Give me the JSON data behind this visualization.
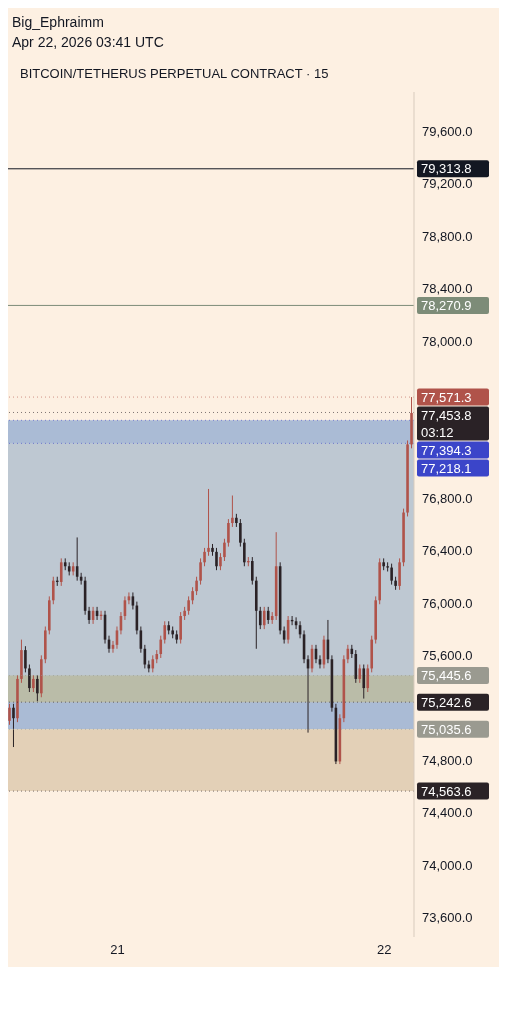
{
  "chart_data": {
    "type": "candlestick",
    "title": "BITCOIN/TETHERUS PERPETUAL CONTRACT · 15",
    "annotations": [
      "Big_Ephraimm",
      "Apr 22, 2026 03:41 UTC"
    ],
    "categories": [
      null,
      null,
      null,
      null,
      null,
      null,
      null,
      null,
      null,
      null,
      null,
      null,
      null,
      null,
      null,
      null,
      null,
      null,
      null,
      null,
      null,
      null,
      null,
      null,
      null,
      null,
      null,
      "21",
      null,
      null,
      null,
      null,
      null,
      null,
      null,
      null,
      null,
      null,
      null,
      null,
      null,
      null,
      null,
      null,
      null,
      null,
      null,
      null,
      null,
      null,
      null,
      null,
      null,
      null,
      null,
      null,
      null,
      null,
      null,
      null,
      null,
      null,
      null,
      null,
      null,
      null,
      null,
      null,
      null,
      null,
      null,
      null,
      null,
      null,
      null,
      null,
      null,
      null,
      null,
      null,
      null,
      null,
      null,
      null,
      null,
      null,
      null,
      null,
      null,
      null,
      null,
      null,
      null,
      null,
      "22",
      null,
      null,
      null,
      null,
      null,
      null,
      null
    ],
    "ohlc": [
      [
        75100,
        75230,
        75070,
        75200
      ],
      [
        75200,
        75230,
        74900,
        75120
      ],
      [
        75120,
        75450,
        75090,
        75420
      ],
      [
        75420,
        75720,
        75390,
        75640
      ],
      [
        75640,
        75670,
        75470,
        75500
      ],
      [
        75500,
        75530,
        75320,
        75350
      ],
      [
        75350,
        75450,
        75320,
        75420
      ],
      [
        75420,
        75450,
        75250,
        75310
      ],
      [
        75310,
        75600,
        75280,
        75570
      ],
      [
        75570,
        75820,
        75540,
        75790
      ],
      [
        75790,
        76050,
        75760,
        76020
      ],
      [
        76020,
        76200,
        75990,
        76170
      ],
      [
        76170,
        76200,
        76130,
        76160
      ],
      [
        76160,
        76340,
        76130,
        76310
      ],
      [
        76310,
        76340,
        76250,
        76280
      ],
      [
        76280,
        76310,
        76210,
        76240
      ],
      [
        76240,
        76310,
        76210,
        76280
      ],
      [
        76280,
        76500,
        76170,
        76200
      ],
      [
        76200,
        76230,
        76140,
        76170
      ],
      [
        76170,
        76200,
        75910,
        75940
      ],
      [
        75940,
        75970,
        75840,
        75870
      ],
      [
        75870,
        75970,
        75840,
        75940
      ],
      [
        75940,
        75970,
        75870,
        75900
      ],
      [
        75900,
        75940,
        75870,
        75910
      ],
      [
        75910,
        75940,
        75690,
        75720
      ],
      [
        75720,
        75750,
        75620,
        75650
      ],
      [
        75650,
        75710,
        75620,
        75680
      ],
      [
        75680,
        75820,
        75650,
        75790
      ],
      [
        75790,
        75930,
        75760,
        75900
      ],
      [
        75900,
        76050,
        75870,
        76020
      ],
      [
        76020,
        76080,
        75990,
        76050
      ],
      [
        76050,
        76080,
        75950,
        75980
      ],
      [
        75980,
        76010,
        75760,
        75790
      ],
      [
        75790,
        75820,
        75620,
        75650
      ],
      [
        75650,
        75680,
        75500,
        75530
      ],
      [
        75530,
        75560,
        75470,
        75500
      ],
      [
        75500,
        75600,
        75470,
        75570
      ],
      [
        75570,
        75640,
        75540,
        75610
      ],
      [
        75610,
        75750,
        75580,
        75720
      ],
      [
        75720,
        75860,
        75690,
        75830
      ],
      [
        75830,
        75860,
        75760,
        75790
      ],
      [
        75790,
        75820,
        75730,
        75760
      ],
      [
        75760,
        75790,
        75690,
        75720
      ],
      [
        75720,
        75930,
        75690,
        75900
      ],
      [
        75900,
        75970,
        75870,
        75940
      ],
      [
        75940,
        76050,
        75910,
        76020
      ],
      [
        76020,
        76120,
        75990,
        76090
      ],
      [
        76090,
        76200,
        76060,
        76170
      ],
      [
        76170,
        76340,
        76140,
        76310
      ],
      [
        76310,
        76420,
        76280,
        76390
      ],
      [
        76390,
        76870,
        76360,
        76420
      ],
      [
        76420,
        76450,
        76360,
        76390
      ],
      [
        76390,
        76420,
        76250,
        76280
      ],
      [
        76280,
        76380,
        76250,
        76350
      ],
      [
        76350,
        76490,
        76320,
        76460
      ],
      [
        76460,
        76640,
        76430,
        76610
      ],
      [
        76610,
        76820,
        76580,
        76650
      ],
      [
        76650,
        76680,
        76580,
        76610
      ],
      [
        76610,
        76640,
        76430,
        76460
      ],
      [
        76460,
        76490,
        76280,
        76310
      ],
      [
        76310,
        76350,
        76280,
        76320
      ],
      [
        76320,
        76350,
        76140,
        76170
      ],
      [
        76170,
        76200,
        75650,
        75940
      ],
      [
        75940,
        75970,
        75800,
        75830
      ],
      [
        75830,
        75970,
        75800,
        75940
      ],
      [
        75940,
        75970,
        75840,
        75870
      ],
      [
        75870,
        75930,
        75840,
        75900
      ],
      [
        75900,
        76540,
        75870,
        76280
      ],
      [
        76280,
        76310,
        75760,
        75790
      ],
      [
        75790,
        75820,
        75690,
        75720
      ],
      [
        75720,
        75900,
        75690,
        75870
      ],
      [
        75870,
        75900,
        75830,
        75860
      ],
      [
        75860,
        75890,
        75800,
        75830
      ],
      [
        75830,
        75860,
        75730,
        75760
      ],
      [
        75760,
        75790,
        75540,
        75570
      ],
      [
        75570,
        75600,
        75010,
        75500
      ],
      [
        75500,
        75680,
        75470,
        75650
      ],
      [
        75650,
        75680,
        75540,
        75570
      ],
      [
        75570,
        75600,
        75500,
        75530
      ],
      [
        75530,
        75750,
        75500,
        75720
      ],
      [
        75720,
        75870,
        75540,
        75570
      ],
      [
        75570,
        75600,
        75170,
        75200
      ],
      [
        75200,
        75230,
        74770,
        74790
      ],
      [
        74790,
        75150,
        74770,
        75120
      ],
      [
        75120,
        75600,
        75090,
        75570
      ],
      [
        75570,
        75680,
        75540,
        75650
      ],
      [
        75650,
        75680,
        75580,
        75610
      ],
      [
        75610,
        75640,
        75390,
        75420
      ],
      [
        75420,
        75530,
        75390,
        75500
      ],
      [
        75500,
        75530,
        75270,
        75350
      ],
      [
        75350,
        75530,
        75320,
        75500
      ],
      [
        75500,
        75750,
        75470,
        75720
      ],
      [
        75720,
        76050,
        75690,
        76020
      ],
      [
        76020,
        76340,
        75990,
        76310
      ],
      [
        76310,
        76340,
        76250,
        76280
      ],
      [
        76280,
        76310,
        76240,
        76270
      ],
      [
        76270,
        76300,
        76140,
        76170
      ],
      [
        76170,
        76200,
        76100,
        76130
      ],
      [
        76130,
        76340,
        76100,
        76310
      ],
      [
        76310,
        76720,
        76280,
        76690
      ],
      [
        76690,
        77240,
        76660,
        77210
      ],
      [
        77210,
        77571.3,
        77180,
        77450
      ]
    ],
    "colors": [
      "#b0534a",
      "#2a2226",
      "#b0534a",
      "#b0534a",
      "#2a2226",
      "#2a2226",
      "#b0534a",
      "#2a2226",
      "#b0534a",
      "#b0534a",
      "#b0534a",
      "#b0534a",
      "#2a2226",
      "#b0534a",
      "#2a2226",
      "#2a2226",
      "#b0534a",
      "#2a2226",
      "#2a2226",
      "#2a2226",
      "#2a2226",
      "#b0534a",
      "#2a2226",
      "#b0534a",
      "#2a2226",
      "#2a2226",
      "#b0534a",
      "#b0534a",
      "#b0534a",
      "#b0534a",
      "#b0534a",
      "#2a2226",
      "#2a2226",
      "#2a2226",
      "#2a2226",
      "#2a2226",
      "#b0534a",
      "#b0534a",
      "#b0534a",
      "#b0534a",
      "#2a2226",
      "#2a2226",
      "#2a2226",
      "#b0534a",
      "#b0534a",
      "#b0534a",
      "#b0534a",
      "#b0534a",
      "#b0534a",
      "#b0534a",
      "#b0534a",
      "#2a2226",
      "#2a2226",
      "#b0534a",
      "#b0534a",
      "#b0534a",
      "#b0534a",
      "#2a2226",
      "#2a2226",
      "#2a2226",
      "#b0534a",
      "#2a2226",
      "#2a2226",
      "#2a2226",
      "#b0534a",
      "#2a2226",
      "#b0534a",
      "#b0534a",
      "#2a2226",
      "#2a2226",
      "#b0534a",
      "#2a2226",
      "#2a2226",
      "#2a2226",
      "#2a2226",
      "#2a2226",
      "#b0534a",
      "#2a2226",
      "#2a2226",
      "#b0534a",
      "#2a2226",
      "#2a2226",
      "#2a2226",
      "#b0534a",
      "#b0534a",
      "#b0534a",
      "#2a2226",
      "#2a2226",
      "#b0534a",
      "#2a2226",
      "#b0534a",
      "#b0534a",
      "#b0534a",
      "#b0534a",
      "#2a2226",
      "#2a2226",
      "#2a2226",
      "#2a2226",
      "#b0534a",
      "#b0534a",
      "#b0534a",
      "#b0534a"
    ],
    "ylim": [
      73450,
      79900
    ],
    "yticks": [
      {
        "value": 73600,
        "label": "73,600.0"
      },
      {
        "value": 74000,
        "label": "74,000.0"
      },
      {
        "value": 74400,
        "label": "74,400.0"
      },
      {
        "value": 74800,
        "label": "74,800.0"
      },
      {
        "value": 75600,
        "label": "75,600.0"
      },
      {
        "value": 76000,
        "label": "76,000.0"
      },
      {
        "value": 76400,
        "label": "76,400.0"
      },
      {
        "value": 76800,
        "label": "76,800.0"
      },
      {
        "value": 78000,
        "label": "78,000.0"
      },
      {
        "value": 78400,
        "label": "78,400.0"
      },
      {
        "value": 78800,
        "label": "78,800.0"
      },
      {
        "value": 79200,
        "label": "79,200.0"
      },
      {
        "value": 79600,
        "label": "79,600.0"
      }
    ],
    "ref_lines": [
      {
        "axis": "y",
        "value": 79313.8,
        "label": "79,313.8",
        "color": "#131722",
        "line_style": "solid"
      },
      {
        "axis": "y",
        "value": 78270.9,
        "label": "78,270.9",
        "color": "#7d8c78",
        "line_style": "solid"
      },
      {
        "axis": "y",
        "value": 77453.8,
        "label": "77,453.8\n03:12",
        "color": "#2a2226",
        "line_style": "dotted"
      },
      {
        "axis": "y",
        "value": 77571.3,
        "label": "77,571.3",
        "color": "#b0534a",
        "line_style": "dotted"
      },
      {
        "axis": "y",
        "value": 77394.3,
        "label": "77,394.3",
        "color": "#3b45c9",
        "line_style": "dotted"
      },
      {
        "axis": "y",
        "value": 77218.1,
        "label": "77,218.1",
        "color": "#3b45c9",
        "line_style": "dotted"
      },
      {
        "axis": "y",
        "value": 75445.6,
        "label": "75,445.6",
        "color": "#9a9a90",
        "line_style": "dotted"
      },
      {
        "axis": "y",
        "value": 75242.6,
        "label": "75,242.6",
        "color": "#2a2226",
        "line_style": "dotted"
      },
      {
        "axis": "y",
        "value": 75035.6,
        "label": "75,035.6",
        "color": "#9a9a90",
        "line_style": "dotted"
      },
      {
        "axis": "y",
        "value": 74563.6,
        "label": "74,563.6",
        "color": "#2a2226",
        "line_style": "dotted"
      }
    ],
    "bands": [
      {
        "axis": "y",
        "from": 75035.6,
        "to": 77394.3,
        "color": "#8eaad0"
      },
      {
        "axis": "y",
        "from": 75242.6,
        "to": 77218.1,
        "color": "#c4ccd0"
      },
      {
        "axis": "y",
        "from": 74563.6,
        "to": 75035.6,
        "color": "#d9c6a8"
      },
      {
        "axis": "y",
        "from": 75242.6,
        "to": 75445.6,
        "color": "#b8b89a"
      }
    ]
  }
}
